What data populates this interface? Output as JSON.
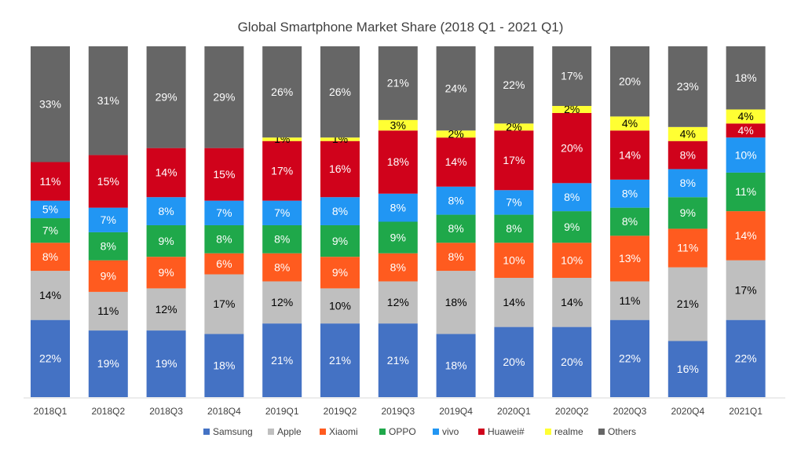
{
  "chart_data": {
    "type": "bar",
    "stacked": true,
    "title": "Global Smartphone Market Share (2018 Q1 - 2021 Q1)",
    "xlabel": "",
    "ylabel": "",
    "ylim": [
      0,
      100
    ],
    "grid": false,
    "legend_position": "bottom",
    "categories": [
      "2018Q1",
      "2018Q2",
      "2018Q3",
      "2018Q4",
      "2019Q1",
      "2019Q2",
      "2019Q3",
      "2019Q4",
      "2020Q1",
      "2020Q2",
      "2020Q3",
      "2020Q4",
      "2021Q1"
    ],
    "series": [
      {
        "name": "Samsung",
        "color": "#4472C4",
        "label_color": "#ffffff",
        "values": [
          22,
          19,
          19,
          18,
          21,
          21,
          21,
          18,
          20,
          20,
          22,
          16,
          22
        ]
      },
      {
        "name": "Apple",
        "color": "#BFBFBF",
        "label_color": "#000000",
        "values": [
          14,
          11,
          12,
          17,
          12,
          10,
          12,
          18,
          14,
          14,
          11,
          21,
          17
        ]
      },
      {
        "name": "Xiaomi",
        "color": "#FF5B1F",
        "label_color": "#ffffff",
        "values": [
          8,
          9,
          9,
          6,
          8,
          9,
          8,
          8,
          10,
          10,
          13,
          11,
          14
        ]
      },
      {
        "name": "OPPO",
        "color": "#1FA84A",
        "label_color": "#ffffff",
        "values": [
          7,
          8,
          9,
          8,
          8,
          9,
          9,
          8,
          8,
          9,
          8,
          9,
          11
        ]
      },
      {
        "name": "vivo",
        "color": "#2196F3",
        "label_color": "#ffffff",
        "values": [
          5,
          7,
          8,
          7,
          7,
          8,
          8,
          8,
          7,
          8,
          8,
          8,
          10
        ]
      },
      {
        "name": "Huawei#",
        "color": "#D0021B",
        "label_color": "#ffffff",
        "values": [
          11,
          15,
          14,
          15,
          17,
          16,
          18,
          14,
          17,
          20,
          14,
          8,
          4
        ]
      },
      {
        "name": "realme",
        "color": "#FFFF33",
        "label_color": "#000000",
        "values": [
          0,
          0,
          0,
          0,
          1,
          1,
          3,
          2,
          2,
          2,
          4,
          4,
          4
        ]
      },
      {
        "name": "Others",
        "color": "#666666",
        "label_color": "#ffffff",
        "values": [
          33,
          31,
          29,
          29,
          26,
          26,
          21,
          24,
          22,
          17,
          20,
          23,
          18
        ]
      }
    ]
  }
}
